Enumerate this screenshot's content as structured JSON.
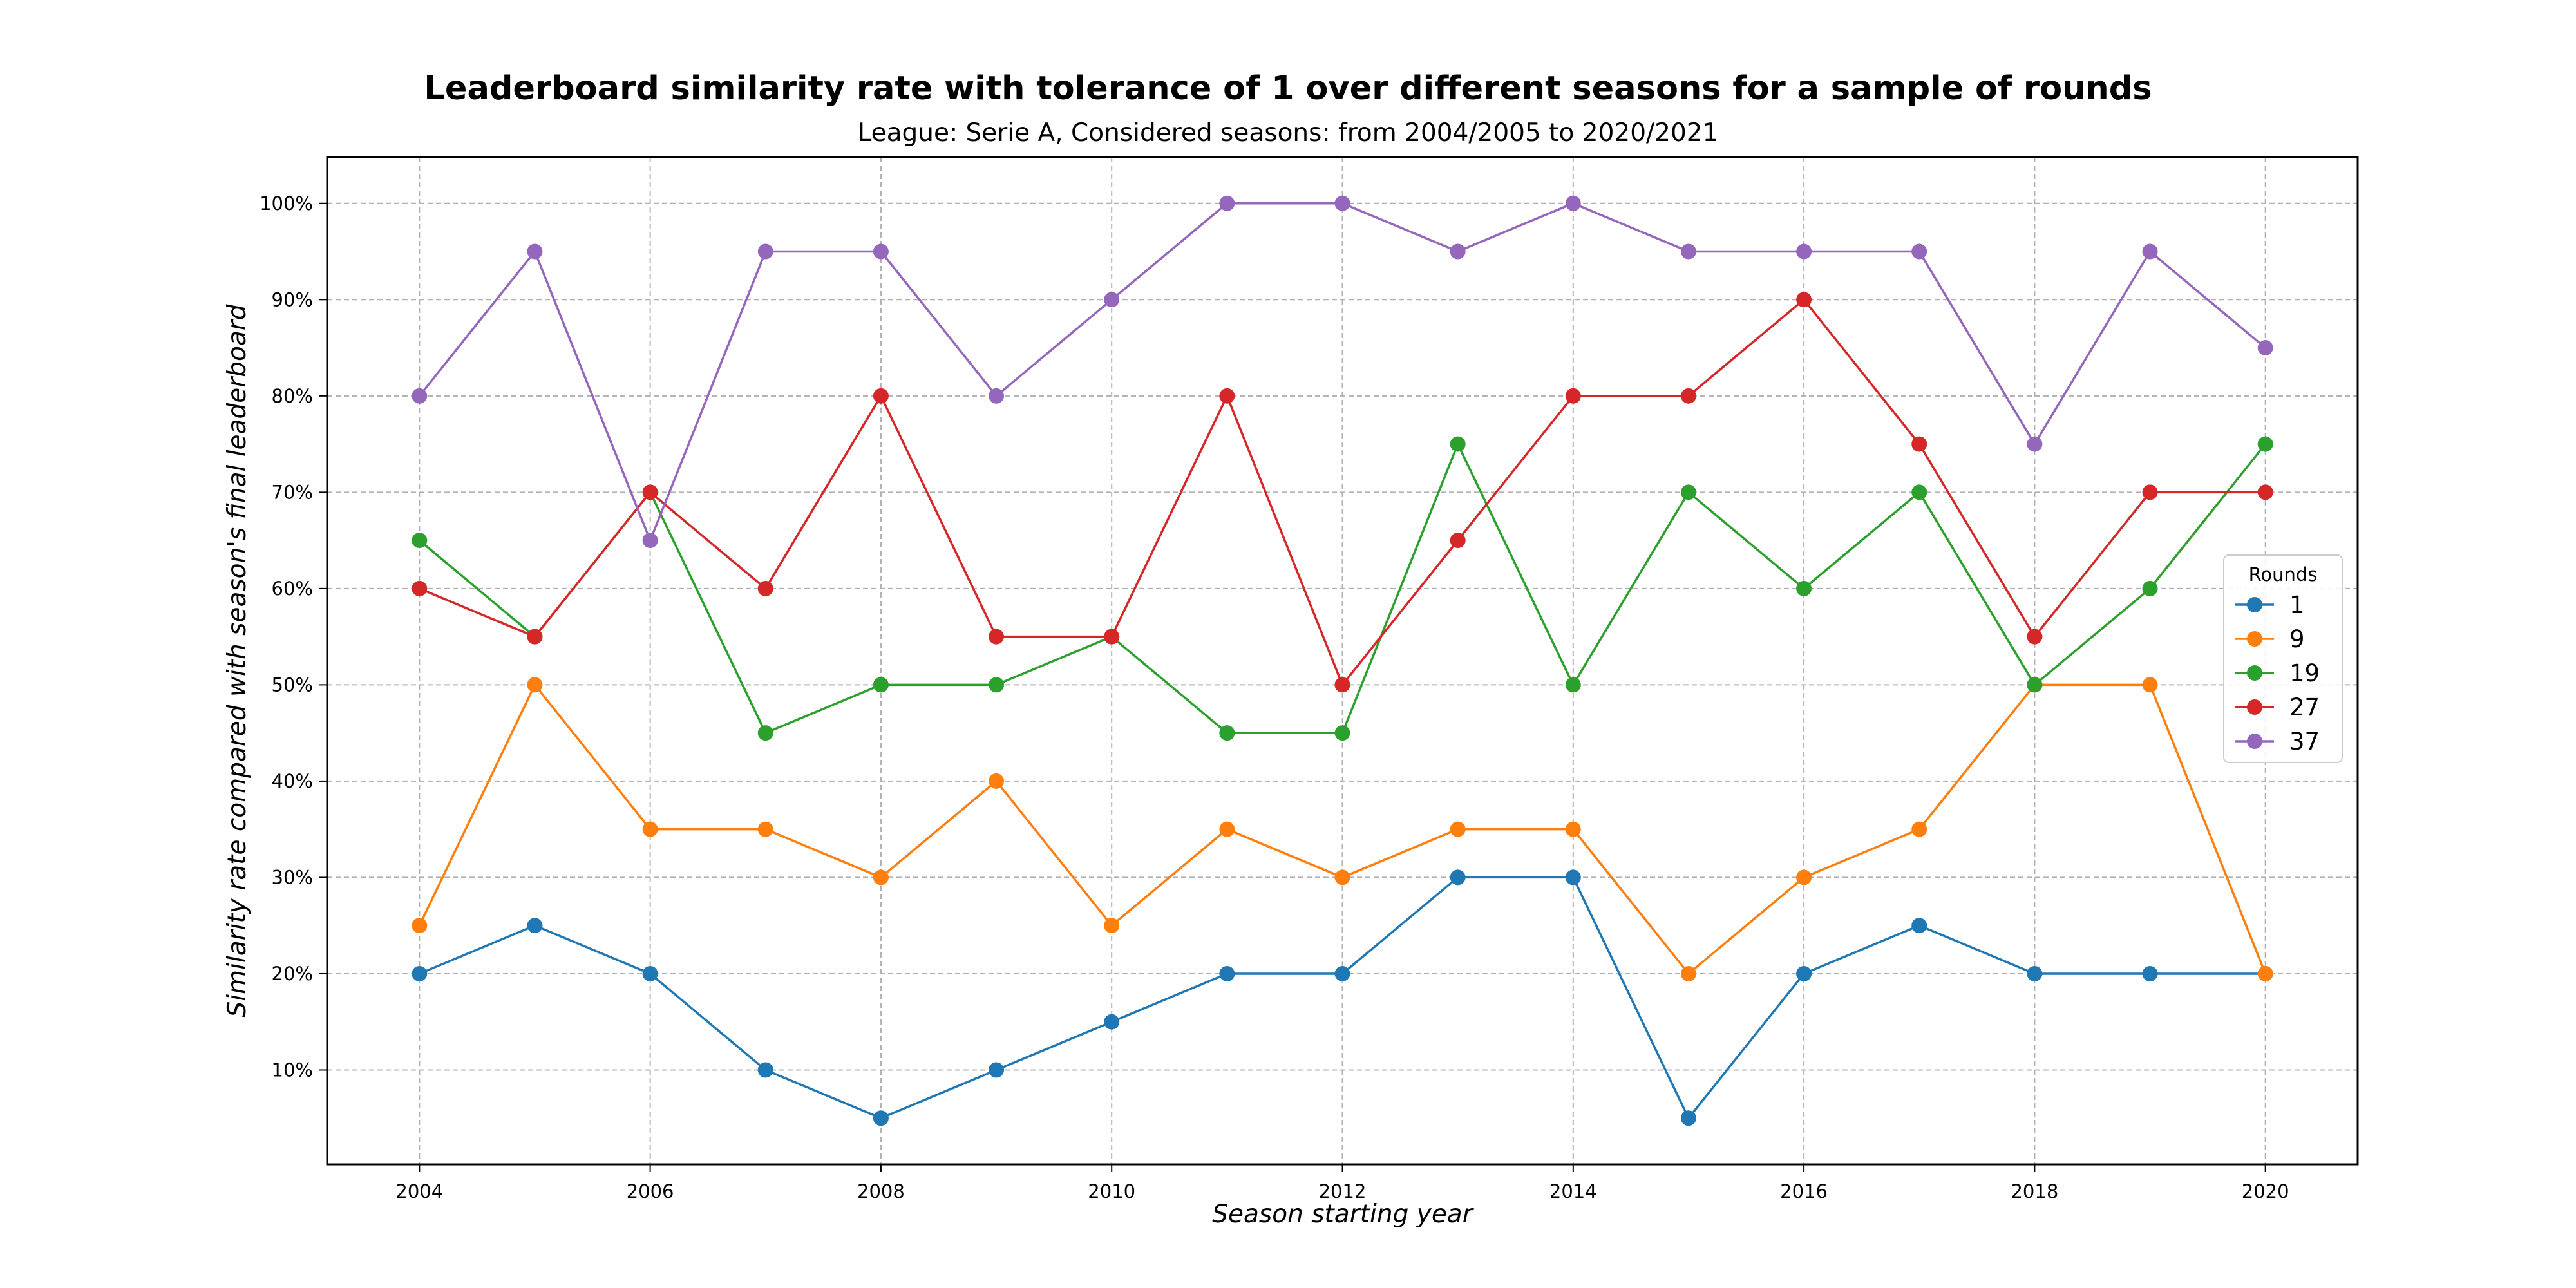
{
  "chart_data": {
    "type": "line",
    "title": "Leaderboard similarity rate with tolerance of 1 over different seasons for a sample of rounds",
    "subtitle": "League: Serie A, Considered seasons: from 2004/2005 to 2020/2021",
    "xlabel": "Season starting year",
    "ylabel": "Similarity rate compared with season's final leaderboard",
    "x": [
      2004,
      2005,
      2006,
      2007,
      2008,
      2009,
      2010,
      2011,
      2012,
      2013,
      2014,
      2015,
      2016,
      2017,
      2018,
      2019,
      2020
    ],
    "xticks": [
      "2004",
      "2006",
      "2008",
      "2010",
      "2012",
      "2014",
      "2016",
      "2018",
      "2020"
    ],
    "yticks": [
      "10%",
      "20%",
      "30%",
      "40%",
      "50%",
      "60%",
      "70%",
      "80%",
      "90%",
      "100%"
    ],
    "xlim": [
      2003.2,
      2020.8
    ],
    "ylim": [
      0.2,
      104.8
    ],
    "grid": true,
    "legend": {
      "title": "Rounds",
      "position": "center-right"
    },
    "series": [
      {
        "name": "1",
        "color": "#1f77b4",
        "values": [
          20,
          25,
          20,
          10,
          5,
          10,
          15,
          20,
          20,
          30,
          30,
          5,
          20,
          25,
          20,
          20,
          20
        ]
      },
      {
        "name": "9",
        "color": "#ff7f0e",
        "values": [
          25,
          50,
          35,
          35,
          30,
          40,
          25,
          35,
          30,
          35,
          35,
          20,
          30,
          35,
          50,
          50,
          20
        ]
      },
      {
        "name": "19",
        "color": "#2ca02c",
        "values": [
          65,
          55,
          70,
          45,
          50,
          50,
          55,
          45,
          45,
          75,
          50,
          70,
          60,
          70,
          50,
          60,
          75
        ]
      },
      {
        "name": "27",
        "color": "#d62728",
        "values": [
          60,
          55,
          70,
          60,
          80,
          55,
          55,
          80,
          50,
          65,
          80,
          80,
          90,
          75,
          55,
          70,
          70
        ]
      },
      {
        "name": "37",
        "color": "#9467bd",
        "values": [
          80,
          95,
          65,
          95,
          95,
          80,
          90,
          100,
          100,
          95,
          100,
          95,
          95,
          95,
          75,
          95,
          85
        ]
      }
    ]
  }
}
